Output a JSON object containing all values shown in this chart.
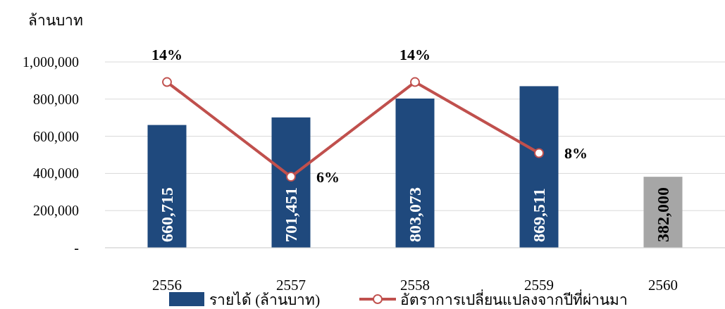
{
  "chart_data": {
    "type": "bar",
    "ylabel": "ล้านบาท",
    "categories": [
      "2556",
      "2557",
      "2558",
      "2559",
      "2560"
    ],
    "ylim": [
      0,
      1000000
    ],
    "yticks": [
      {
        "value": 0,
        "label": "-"
      },
      {
        "value": 200000,
        "label": "200,000"
      },
      {
        "value": 400000,
        "label": "400,000"
      },
      {
        "value": 600000,
        "label": "600,000"
      },
      {
        "value": 800000,
        "label": "800,000"
      },
      {
        "value": 1000000,
        "label": "1,000,000"
      }
    ],
    "y2lim": [
      0,
      15.7
    ],
    "grid": "y",
    "legend": "bottom",
    "tick_labels": "y",
    "series": [
      {
        "name": "รายได้ (ล้านบาท)",
        "color": "#1f497d",
        "colors": [
          "#1f497d",
          "#1f497d",
          "#1f497d",
          "#1f497d",
          "#a6a6a6"
        ],
        "values": [
          660715,
          701451,
          803073,
          869511,
          382000
        ],
        "value_labels": [
          "660,715",
          "701,451",
          "803,073",
          "869,511",
          "382,000"
        ]
      },
      {
        "name": "อัตราการเปลี่ยนแปลงจากปีที่ผ่านมา",
        "type": "line",
        "axis": "y2",
        "color": "#c0504d",
        "marker": "circle",
        "line_style": "solid",
        "values": [
          14,
          6,
          14,
          8,
          null
        ],
        "value_labels": [
          "14%",
          "6%",
          "14%",
          "8%",
          null
        ]
      }
    ]
  }
}
